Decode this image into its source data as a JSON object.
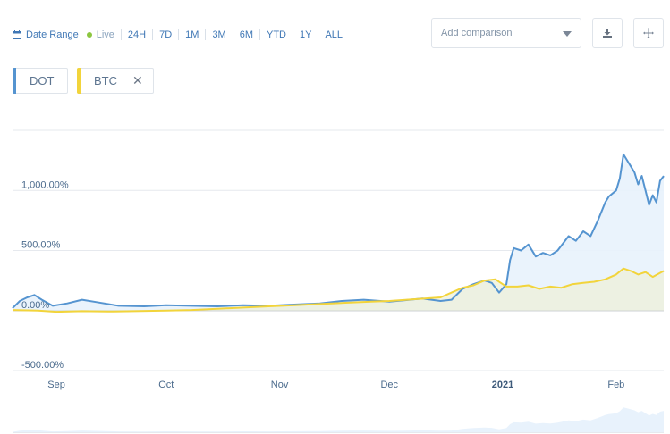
{
  "toolbar": {
    "date_range_label": "Date Range",
    "live_label": "Live",
    "ranges": [
      "24H",
      "7D",
      "1M",
      "3M",
      "6M",
      "YTD",
      "1Y",
      "ALL"
    ]
  },
  "comparison": {
    "placeholder": "Add comparison"
  },
  "icons": {
    "download": "download-icon",
    "expand": "move-icon",
    "calendar": "calendar-icon",
    "remove": "close-icon"
  },
  "colors": {
    "dot": "#5594d0",
    "btc": "#f2d43b",
    "dot_fill": "#e8f2fc",
    "btc_fill": "#eef0d9"
  },
  "legend": [
    {
      "label": "DOT",
      "color": "#5594d0",
      "removable": false
    },
    {
      "label": "BTC",
      "color": "#f2d43b",
      "removable": true
    }
  ],
  "chart_data": {
    "type": "line",
    "ylabel": "",
    "xlabel": "",
    "y_ticks": [
      {
        "value": 1000,
        "label": "1,000.00%"
      },
      {
        "value": 500,
        "label": "500.00%"
      },
      {
        "value": 0,
        "label": "0.00%"
      },
      {
        "value": -500,
        "label": "-500.00%"
      }
    ],
    "ylim": [
      -500,
      1500
    ],
    "x_ticks": [
      {
        "date": "2020-09-01",
        "label": "Sep",
        "bold": false
      },
      {
        "date": "2020-10-01",
        "label": "Oct",
        "bold": false
      },
      {
        "date": "2020-11-01",
        "label": "Nov",
        "bold": false
      },
      {
        "date": "2020-12-01",
        "label": "Dec",
        "bold": false
      },
      {
        "date": "2021-01-01",
        "label": "2021",
        "bold": true
      },
      {
        "date": "2021-02-01",
        "label": "Feb",
        "bold": false
      }
    ],
    "xlim": [
      "2020-08-20",
      "2021-02-14"
    ],
    "series": [
      {
        "name": "DOT",
        "color": "#5594d0",
        "points": [
          [
            "2020-08-20",
            20
          ],
          [
            "2020-08-22",
            80
          ],
          [
            "2020-08-24",
            110
          ],
          [
            "2020-08-26",
            130
          ],
          [
            "2020-08-28",
            90
          ],
          [
            "2020-08-31",
            40
          ],
          [
            "2020-09-04",
            60
          ],
          [
            "2020-09-08",
            90
          ],
          [
            "2020-09-12",
            70
          ],
          [
            "2020-09-18",
            40
          ],
          [
            "2020-09-25",
            35
          ],
          [
            "2020-10-01",
            45
          ],
          [
            "2020-10-08",
            40
          ],
          [
            "2020-10-15",
            35
          ],
          [
            "2020-10-22",
            45
          ],
          [
            "2020-10-29",
            40
          ],
          [
            "2020-11-05",
            50
          ],
          [
            "2020-11-12",
            60
          ],
          [
            "2020-11-18",
            80
          ],
          [
            "2020-11-24",
            90
          ],
          [
            "2020-12-01",
            75
          ],
          [
            "2020-12-05",
            85
          ],
          [
            "2020-12-10",
            100
          ],
          [
            "2020-12-15",
            80
          ],
          [
            "2020-12-18",
            90
          ],
          [
            "2020-12-21",
            180
          ],
          [
            "2020-12-24",
            220
          ],
          [
            "2020-12-27",
            250
          ],
          [
            "2020-12-29",
            230
          ],
          [
            "2020-12-31",
            150
          ],
          [
            "2021-01-02",
            220
          ],
          [
            "2021-01-03",
            420
          ],
          [
            "2021-01-04",
            520
          ],
          [
            "2021-01-06",
            500
          ],
          [
            "2021-01-08",
            550
          ],
          [
            "2021-01-10",
            450
          ],
          [
            "2021-01-12",
            480
          ],
          [
            "2021-01-14",
            460
          ],
          [
            "2021-01-16",
            500
          ],
          [
            "2021-01-19",
            620
          ],
          [
            "2021-01-21",
            580
          ],
          [
            "2021-01-23",
            660
          ],
          [
            "2021-01-25",
            620
          ],
          [
            "2021-01-27",
            750
          ],
          [
            "2021-01-29",
            900
          ],
          [
            "2021-01-30",
            950
          ],
          [
            "2021-02-01",
            1000
          ],
          [
            "2021-02-02",
            1100
          ],
          [
            "2021-02-03",
            1300
          ],
          [
            "2021-02-04",
            1250
          ],
          [
            "2021-02-05",
            1200
          ],
          [
            "2021-02-06",
            1150
          ],
          [
            "2021-02-07",
            1050
          ],
          [
            "2021-02-08",
            1120
          ],
          [
            "2021-02-09",
            1000
          ],
          [
            "2021-02-10",
            880
          ],
          [
            "2021-02-11",
            960
          ],
          [
            "2021-02-12",
            900
          ],
          [
            "2021-02-13",
            1080
          ],
          [
            "2021-02-14",
            1120
          ]
        ]
      },
      {
        "name": "BTC",
        "color": "#f2d43b",
        "points": [
          [
            "2020-08-20",
            5
          ],
          [
            "2020-08-27",
            0
          ],
          [
            "2020-09-01",
            -10
          ],
          [
            "2020-09-08",
            -5
          ],
          [
            "2020-09-15",
            -8
          ],
          [
            "2020-09-22",
            -5
          ],
          [
            "2020-10-01",
            0
          ],
          [
            "2020-10-08",
            5
          ],
          [
            "2020-10-15",
            15
          ],
          [
            "2020-10-22",
            25
          ],
          [
            "2020-10-29",
            35
          ],
          [
            "2020-11-05",
            45
          ],
          [
            "2020-11-12",
            55
          ],
          [
            "2020-11-19",
            65
          ],
          [
            "2020-11-26",
            75
          ],
          [
            "2020-12-01",
            80
          ],
          [
            "2020-12-08",
            95
          ],
          [
            "2020-12-15",
            110
          ],
          [
            "2020-12-18",
            150
          ],
          [
            "2020-12-21",
            190
          ],
          [
            "2020-12-24",
            210
          ],
          [
            "2020-12-27",
            250
          ],
          [
            "2020-12-30",
            260
          ],
          [
            "2021-01-02",
            200
          ],
          [
            "2021-01-05",
            200
          ],
          [
            "2021-01-08",
            210
          ],
          [
            "2021-01-11",
            180
          ],
          [
            "2021-01-14",
            200
          ],
          [
            "2021-01-17",
            190
          ],
          [
            "2021-01-20",
            220
          ],
          [
            "2021-01-23",
            230
          ],
          [
            "2021-01-26",
            240
          ],
          [
            "2021-01-29",
            260
          ],
          [
            "2021-02-01",
            300
          ],
          [
            "2021-02-03",
            350
          ],
          [
            "2021-02-05",
            330
          ],
          [
            "2021-02-07",
            300
          ],
          [
            "2021-02-09",
            320
          ],
          [
            "2021-02-11",
            280
          ],
          [
            "2021-02-14",
            330
          ]
        ]
      }
    ],
    "grid": true,
    "legend_position": "top-left"
  }
}
